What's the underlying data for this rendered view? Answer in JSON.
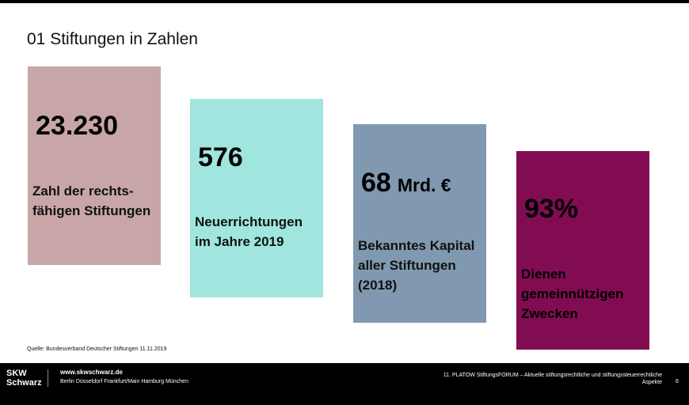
{
  "title": "01 Stiftungen in Zahlen",
  "cards": [
    {
      "value": "23.230",
      "unit": "",
      "label_lines": [
        "Zahl der rechts-",
        "fähigen Stiftungen"
      ],
      "color": "#c8a6a8"
    },
    {
      "value": "576",
      "unit": "",
      "label_lines": [
        "Neuerrichtungen",
        "im Jahre 2019"
      ],
      "color": "#a0e6de"
    },
    {
      "value": "68",
      "unit": "Mrd. €",
      "label_lines": [
        "Bekanntes Kapital",
        "aller Stiftungen",
        "(2018)"
      ],
      "color": "#8099b0"
    },
    {
      "value": "93%",
      "unit": "",
      "label_lines": [
        "Dienen",
        "gemeinnützigen",
        "Zwecken"
      ],
      "color": "#820c52"
    }
  ],
  "source": "Quelle: Bundesverband Deutscher Stiftungen 11.11.2019",
  "footer": {
    "logo_line1": "SKW",
    "logo_line2": "Schwarz",
    "website": "www.skwschwarz.de",
    "cities": "Berlin Düsseldorf Frankfurt/Main Hamburg München",
    "event_line1": "11. PLATOW StiftungsFORUM – Aktuelle stiftungsrechtliche und stiftungssteuerrechtliche",
    "event_line2": "Aspekte",
    "page_number": "6"
  }
}
